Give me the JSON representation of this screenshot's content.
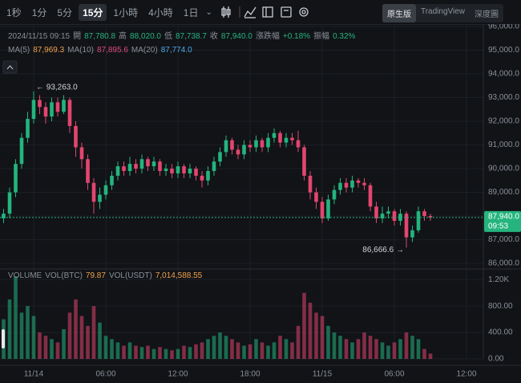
{
  "toolbar": {
    "intervals": [
      "1秒",
      "1分",
      "5分",
      "15分",
      "1小時",
      "4小時",
      "1日"
    ],
    "active_interval": 3,
    "views": [
      "原生版",
      "TradingView",
      "深度圖"
    ],
    "active_view": 0
  },
  "info": {
    "time": "2024/11/15 09:15",
    "open_label": "開",
    "open": "87,780.8",
    "high_label": "高",
    "high": "88,020.0",
    "low_label": "低",
    "low": "87,738.7",
    "close_label": "收",
    "close": "87,940.0",
    "change_label": "漲跌幅",
    "change": "+0.18%",
    "amplitude_label": "振幅",
    "amplitude": "0.32%"
  },
  "ma": [
    {
      "name": "MA(5)",
      "value": "87,969.3",
      "color": "#f0a04b"
    },
    {
      "name": "MA(10)",
      "value": "87,895.6",
      "color": "#e0497a"
    },
    {
      "name": "MA(20)",
      "value": "87,774.0",
      "color": "#4aa8e8"
    }
  ],
  "volume_info": {
    "title": "VOLUME",
    "btc_label": "VOL(BTC)",
    "btc": "79.87",
    "usdt_label": "VOL(USDT)",
    "usdt": "7,014,588.55"
  },
  "chart_data": {
    "type": "candlestick",
    "up_color": "#25b47e",
    "down_color": "#e2466e",
    "x": [
      -2.5,
      -2,
      -1.5,
      -1,
      -0.5,
      0,
      0.5,
      1,
      1.5,
      2,
      2.5,
      3,
      3.5,
      4,
      4.5,
      5,
      5.5,
      6,
      6.5,
      7,
      7.5,
      8,
      8.5,
      9,
      9.5,
      10,
      10.5,
      11,
      11.5,
      12,
      12.5,
      13,
      13.5,
      14,
      14.5,
      15,
      15.5,
      16,
      16.5,
      17,
      17.5,
      18,
      18.5,
      19,
      19.5,
      20,
      20.5,
      21,
      21.5,
      22,
      22.5,
      23,
      23.5,
      24,
      24.5,
      25,
      25.5,
      26,
      26.5,
      27,
      27.5,
      28,
      28.5,
      29,
      29.5,
      30,
      30.5,
      31,
      31.5,
      32,
      32.5,
      33
    ],
    "open": [
      87900,
      88100,
      89000,
      90200,
      91300,
      92100,
      92900,
      92600,
      92200,
      92800,
      92400,
      92900,
      91800,
      90900,
      90400,
      89400,
      88600,
      88900,
      89300,
      89700,
      90100,
      89900,
      90200,
      90000,
      90400,
      90100,
      90300,
      89900,
      90000,
      89800,
      90100,
      89800,
      90000,
      89700,
      89500,
      89900,
      90300,
      90700,
      91200,
      90800,
      90600,
      91000,
      90900,
      91200,
      90900,
      91300,
      91500,
      91100,
      91300,
      91200,
      90900,
      89700,
      89000,
      88600,
      87900,
      88700,
      89100,
      89400,
      89200,
      89500,
      89400,
      89300,
      88400,
      87900,
      88100,
      88200,
      87800,
      88100,
      87100,
      87400,
      88200,
      88000
    ],
    "high": [
      88300,
      89200,
      90400,
      91500,
      92400,
      93263,
      93100,
      92800,
      93000,
      93000,
      93100,
      93000,
      92000,
      91100,
      90600,
      89600,
      89200,
      89500,
      89900,
      90300,
      90300,
      90500,
      90400,
      90600,
      90500,
      90500,
      90400,
      90200,
      90200,
      90300,
      90200,
      90200,
      90100,
      89900,
      90100,
      90500,
      90900,
      91400,
      91300,
      91000,
      91200,
      91200,
      91400,
      91300,
      91500,
      91700,
      91600,
      91500,
      91500,
      91600,
      91000,
      89900,
      89200,
      88800,
      88900,
      89300,
      89600,
      89600,
      89700,
      89600,
      89600,
      89400,
      88600,
      88400,
      88400,
      88300,
      88300,
      88200,
      87600,
      88400,
      88300,
      88100
    ],
    "low": [
      87700,
      87900,
      88800,
      90000,
      91100,
      91900,
      92300,
      91900,
      92000,
      92200,
      92300,
      91500,
      90500,
      90000,
      89100,
      88100,
      88300,
      88700,
      89100,
      89500,
      89700,
      89700,
      89800,
      89800,
      89900,
      89900,
      89700,
      89700,
      89600,
      89600,
      89600,
      89600,
      89500,
      89200,
      89300,
      89700,
      90100,
      90500,
      90600,
      90400,
      90400,
      90700,
      90700,
      90700,
      90700,
      91100,
      90900,
      90900,
      91000,
      90700,
      89500,
      88700,
      88300,
      87700,
      87800,
      88500,
      88900,
      89000,
      89000,
      89200,
      89100,
      88200,
      87700,
      87700,
      87900,
      87600,
      87600,
      86666.6,
      86900,
      87300,
      87800,
      87800
    ],
    "close": [
      88100,
      89000,
      90200,
      91300,
      92100,
      92900,
      92600,
      92200,
      92800,
      92400,
      92900,
      91800,
      90900,
      90400,
      89400,
      88600,
      88900,
      89300,
      89700,
      90100,
      89900,
      90200,
      90000,
      90400,
      90100,
      90300,
      89900,
      90000,
      89800,
      90100,
      89800,
      90000,
      89700,
      89500,
      89900,
      90300,
      90700,
      91200,
      90800,
      90600,
      91000,
      90900,
      91200,
      90900,
      91300,
      91500,
      91100,
      91300,
      91200,
      90900,
      89700,
      89000,
      88600,
      87900,
      88700,
      89100,
      89400,
      89200,
      89500,
      89400,
      89300,
      88400,
      87900,
      88100,
      88200,
      87800,
      88100,
      87100,
      87400,
      88200,
      88000,
      87940
    ],
    "volume": [
      600,
      900,
      1250,
      700,
      800,
      650,
      400,
      350,
      300,
      250,
      450,
      700,
      900,
      650,
      500,
      800,
      550,
      350,
      300,
      250,
      200,
      250,
      200,
      180,
      200,
      150,
      180,
      150,
      130,
      150,
      200,
      180,
      220,
      250,
      300,
      350,
      400,
      350,
      300,
      250,
      200,
      220,
      300,
      250,
      200,
      250,
      350,
      300,
      250,
      500,
      1000,
      850,
      700,
      650,
      500,
      400,
      350,
      300,
      250,
      300,
      400,
      350,
      300,
      250,
      200,
      250,
      300,
      400,
      350,
      300,
      150,
      79.87
    ],
    "xlim": [
      -2.8,
      37.4
    ],
    "xticks": [
      {
        "value": 0,
        "label": "11/14"
      },
      {
        "value": 6,
        "label": "06:00"
      },
      {
        "value": 12,
        "label": "12:00"
      },
      {
        "value": 18,
        "label": "18:00"
      },
      {
        "value": 24,
        "label": "11/15"
      },
      {
        "value": 30,
        "label": "06:00"
      },
      {
        "value": 36,
        "label": "12:00"
      }
    ],
    "ylim": [
      85800,
      96100
    ],
    "yticks": [
      {
        "value": 86000,
        "label": "86,000.0"
      },
      {
        "value": 87000,
        "label": "87,000.0"
      },
      {
        "value": 88000,
        "label": "88,000.0"
      },
      {
        "value": 89000,
        "label": "89,000.0"
      },
      {
        "value": 90000,
        "label": "90,000.0"
      },
      {
        "value": 91000,
        "label": "91,000.0"
      },
      {
        "value": 92000,
        "label": "92,000.0"
      },
      {
        "value": 93000,
        "label": "93,000.0"
      },
      {
        "value": 94000,
        "label": "94,000.0"
      },
      {
        "value": 95000,
        "label": "95,000.0"
      },
      {
        "value": 96000,
        "label": "96,000.0"
      }
    ],
    "y2lim": [
      0,
      1300
    ],
    "y2ticks": [
      {
        "value": 0,
        "label": "0.00"
      },
      {
        "value": 400,
        "label": "400.00"
      },
      {
        "value": 800,
        "label": "800.00"
      },
      {
        "value": 1200,
        "label": "1.20K"
      }
    ],
    "last_price": {
      "value": 87940,
      "label": "87,940.0",
      "countdown": "09:53"
    },
    "annotations": [
      {
        "text": "← 93,263.0",
        "x": 0,
        "y": 93263
      },
      {
        "text": "86,666.6 →",
        "x": 31,
        "y": 86666.6
      }
    ],
    "grid": true
  }
}
